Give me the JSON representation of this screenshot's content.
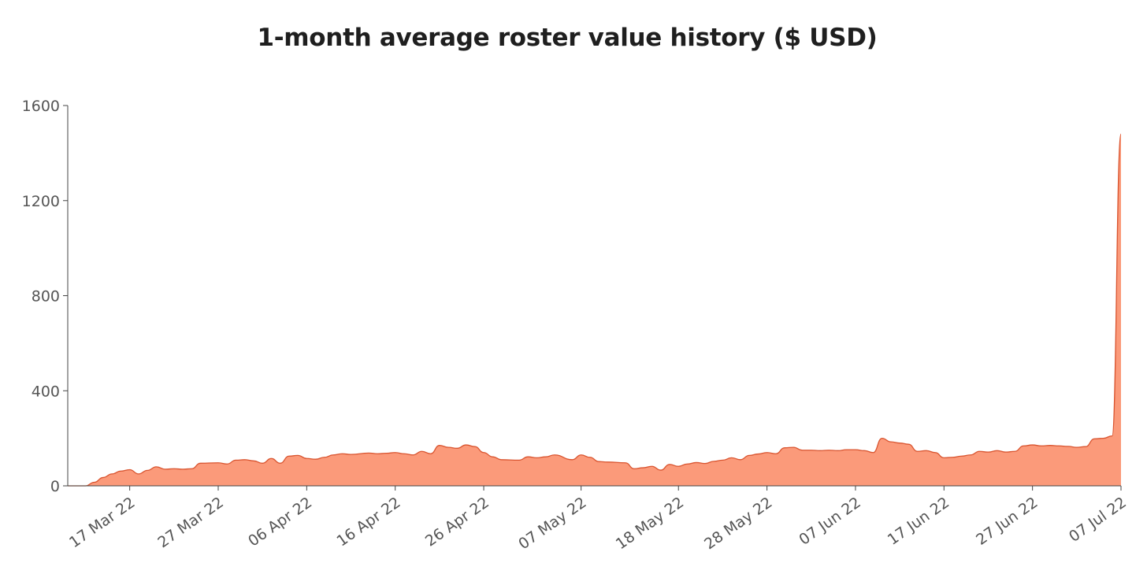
{
  "chart_data": {
    "type": "area",
    "title": "1-month average roster value history ($ USD)",
    "xlabel": "",
    "ylabel": "",
    "ylim": [
      0,
      1600
    ],
    "yticks": [
      0,
      400,
      800,
      1200,
      1600
    ],
    "xlim": [
      "2022-03-10",
      "2022-07-07"
    ],
    "xticks": [
      {
        "date": "2022-03-17",
        "label": "17 Mar 22"
      },
      {
        "date": "2022-03-27",
        "label": "27 Mar 22"
      },
      {
        "date": "2022-04-06",
        "label": "06 Apr 22"
      },
      {
        "date": "2022-04-16",
        "label": "16 Apr 22"
      },
      {
        "date": "2022-04-26",
        "label": "26 Apr 22"
      },
      {
        "date": "2022-05-07",
        "label": "07 May 22"
      },
      {
        "date": "2022-05-18",
        "label": "18 May 22"
      },
      {
        "date": "2022-05-28",
        "label": "28 May 22"
      },
      {
        "date": "2022-06-07",
        "label": "07 Jun 22"
      },
      {
        "date": "2022-06-17",
        "label": "17 Jun 22"
      },
      {
        "date": "2022-06-27",
        "label": "27 Jun 22"
      },
      {
        "date": "2022-07-07",
        "label": "07 Jul 22"
      }
    ],
    "fill_color": "#fb9a7a",
    "line_color": "#d9542f",
    "x": [
      "2022-03-10",
      "2022-03-12",
      "2022-03-13",
      "2022-03-14",
      "2022-03-15",
      "2022-03-16",
      "2022-03-17",
      "2022-03-18",
      "2022-03-19",
      "2022-03-20",
      "2022-03-21",
      "2022-03-22",
      "2022-03-23",
      "2022-03-24",
      "2022-03-25",
      "2022-03-27",
      "2022-03-28",
      "2022-03-29",
      "2022-03-30",
      "2022-03-31",
      "2022-04-01",
      "2022-04-02",
      "2022-04-03",
      "2022-04-04",
      "2022-04-05",
      "2022-04-06",
      "2022-04-07",
      "2022-04-08",
      "2022-04-09",
      "2022-04-10",
      "2022-04-11",
      "2022-04-13",
      "2022-04-14",
      "2022-04-15",
      "2022-04-16",
      "2022-04-17",
      "2022-04-18",
      "2022-04-19",
      "2022-04-20",
      "2022-04-21",
      "2022-04-22",
      "2022-04-23",
      "2022-04-24",
      "2022-04-25",
      "2022-04-26",
      "2022-04-27",
      "2022-04-28",
      "2022-04-30",
      "2022-05-01",
      "2022-05-02",
      "2022-05-03",
      "2022-05-04",
      "2022-05-06",
      "2022-05-07",
      "2022-05-08",
      "2022-05-09",
      "2022-05-10",
      "2022-05-12",
      "2022-05-13",
      "2022-05-14",
      "2022-05-15",
      "2022-05-16",
      "2022-05-17",
      "2022-05-18",
      "2022-05-19",
      "2022-05-20",
      "2022-05-21",
      "2022-05-22",
      "2022-05-23",
      "2022-05-24",
      "2022-05-25",
      "2022-05-26",
      "2022-05-27",
      "2022-05-28",
      "2022-05-29",
      "2022-05-30",
      "2022-05-31",
      "2022-06-01",
      "2022-06-02",
      "2022-06-03",
      "2022-06-04",
      "2022-06-05",
      "2022-06-06",
      "2022-06-07",
      "2022-06-08",
      "2022-06-09",
      "2022-06-10",
      "2022-06-11",
      "2022-06-12",
      "2022-06-13",
      "2022-06-14",
      "2022-06-15",
      "2022-06-16",
      "2022-06-17",
      "2022-06-18",
      "2022-06-19",
      "2022-06-20",
      "2022-06-21",
      "2022-06-22",
      "2022-06-23",
      "2022-06-24",
      "2022-06-25",
      "2022-06-26",
      "2022-06-27",
      "2022-06-28",
      "2022-06-29",
      "2022-06-30",
      "2022-07-01",
      "2022-07-02",
      "2022-07-03",
      "2022-07-04",
      "2022-07-05",
      "2022-07-06",
      "2022-07-07"
    ],
    "values": [
      0,
      0,
      15,
      35,
      50,
      62,
      68,
      50,
      65,
      80,
      70,
      72,
      70,
      72,
      95,
      97,
      92,
      108,
      110,
      105,
      95,
      115,
      95,
      125,
      128,
      115,
      112,
      120,
      130,
      135,
      132,
      138,
      135,
      137,
      140,
      135,
      130,
      145,
      135,
      170,
      162,
      158,
      172,
      165,
      140,
      122,
      110,
      108,
      122,
      118,
      122,
      130,
      110,
      130,
      120,
      102,
      100,
      97,
      72,
      76,
      82,
      66,
      90,
      82,
      92,
      98,
      94,
      103,
      108,
      118,
      110,
      128,
      134,
      140,
      135,
      160,
      162,
      150,
      150,
      148,
      150,
      148,
      152,
      152,
      148,
      140,
      200,
      185,
      180,
      175,
      145,
      148,
      140,
      118,
      120,
      125,
      130,
      145,
      142,
      148,
      142,
      145,
      168,
      172,
      168,
      170,
      168,
      166,
      162,
      165,
      198,
      200,
      210,
      1480
    ]
  }
}
